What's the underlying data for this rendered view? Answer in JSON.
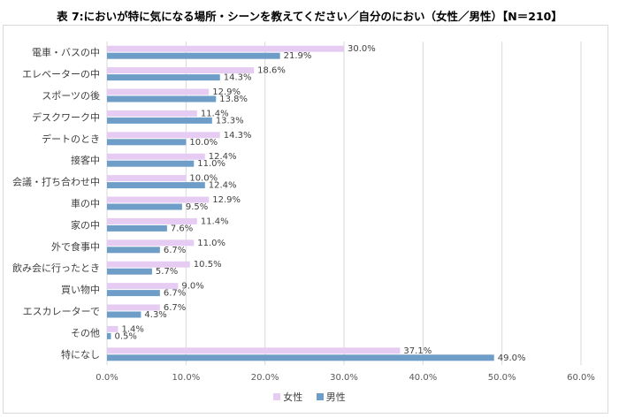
{
  "title": "表 7:においが特に気になる場所・シーンを教えてください／自分のにおい（女性／男性）【N＝210】",
  "colors": {
    "female": "#e6ccf3",
    "male": "#6e9ec8",
    "grid": "#d9d9d9"
  },
  "chart_data": {
    "type": "bar",
    "orientation": "horizontal",
    "categories": [
      "電車・バスの中",
      "エレベーターの中",
      "スポーツの後",
      "デスクワーク中",
      "デートのとき",
      "接客中",
      "会議・打ち合わせ中",
      "車の中",
      "家の中",
      "外で食事中",
      "飲み会に行ったとき",
      "買い物中",
      "エスカレーターで",
      "その他",
      "特になし"
    ],
    "series": [
      {
        "name": "女性",
        "values": [
          30.0,
          18.6,
          12.9,
          11.4,
          14.3,
          12.4,
          10.0,
          12.9,
          11.4,
          11.0,
          10.5,
          9.0,
          6.7,
          1.4,
          37.1
        ],
        "labels": [
          "30.0%",
          "18.6%",
          "12.9%",
          "11.4%",
          "14.3%",
          "12.4%",
          "10.0%",
          "12.9%",
          "11.4%",
          "11.0%",
          "10.5%",
          "9.0%",
          "6.7%",
          "1.4%",
          "37.1%"
        ]
      },
      {
        "name": "男性",
        "values": [
          21.9,
          14.3,
          13.8,
          13.3,
          10.0,
          11.0,
          12.4,
          9.5,
          7.6,
          6.7,
          5.7,
          6.7,
          4.3,
          0.5,
          49.0
        ],
        "labels": [
          "21.9%",
          "14.3%",
          "13.8%",
          "13.3%",
          "10.0%",
          "11.0%",
          "12.4%",
          "9.5%",
          "7.6%",
          "6.7%",
          "5.7%",
          "6.7%",
          "4.3%",
          "0.5%",
          "49.0%"
        ]
      }
    ],
    "xlim": [
      0,
      60
    ],
    "xticks": [
      "0.0%",
      "10.0%",
      "20.0%",
      "30.0%",
      "40.0%",
      "50.0%",
      "60.0%"
    ],
    "grid": true,
    "legend": "bottom"
  }
}
